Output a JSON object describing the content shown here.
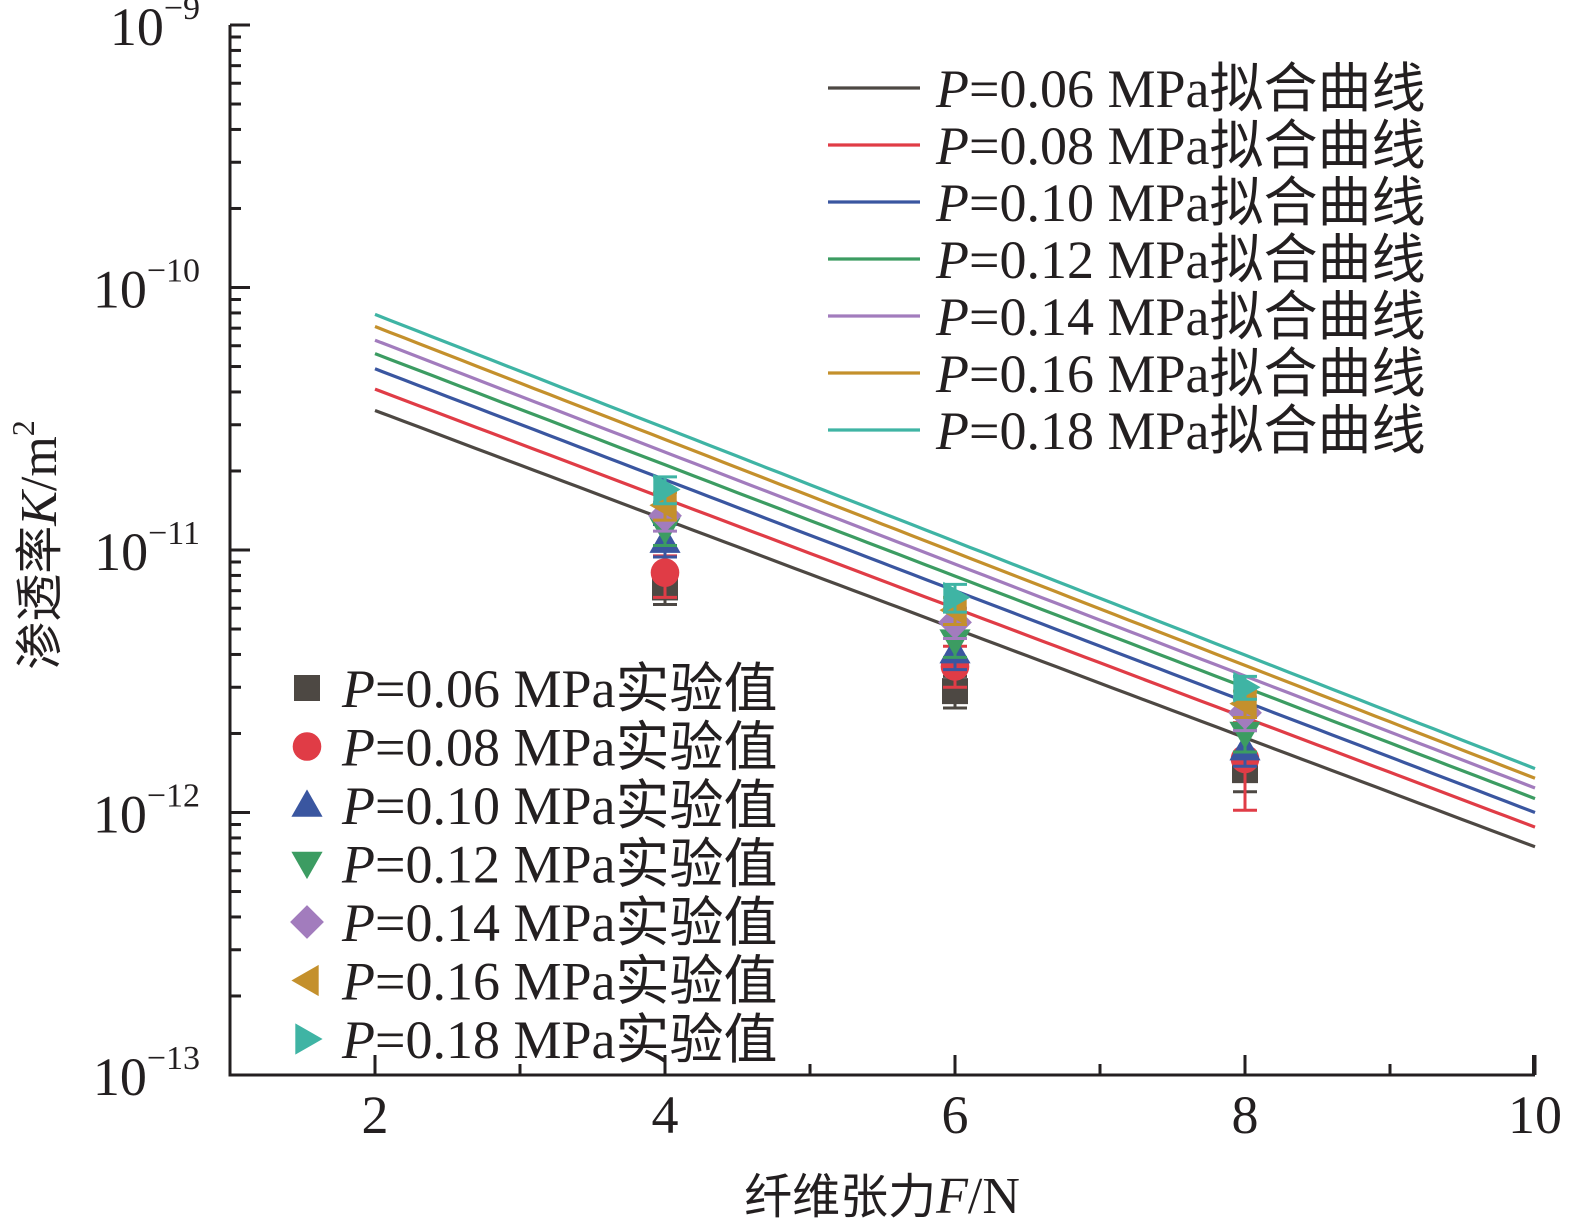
{
  "chart_data": {
    "type": "line",
    "xlabel": {
      "prefix": "纤维张力",
      "var": "F",
      "unit": "/N"
    },
    "ylabel": {
      "prefix": "渗透率",
      "var": "K",
      "unit": "/m",
      "unit_sup": "2"
    },
    "xlim": [
      1,
      10
    ],
    "ylim": [
      1e-13,
      1e-09
    ],
    "yscale": "log",
    "x_ticks": [
      {
        "value": 2,
        "label": "2"
      },
      {
        "value": 4,
        "label": "4"
      },
      {
        "value": 6,
        "label": "6"
      },
      {
        "value": 8,
        "label": "8"
      },
      {
        "value": 10,
        "label": "10"
      }
    ],
    "y_ticks": [
      {
        "value": 1e-09,
        "base": "10",
        "exp": "−9"
      },
      {
        "value": 1e-10,
        "base": "10",
        "exp": "−10"
      },
      {
        "value": 1e-11,
        "base": "10",
        "exp": "−11"
      },
      {
        "value": 1e-12,
        "base": "10",
        "exp": "−12"
      },
      {
        "value": 1e-13,
        "base": "10",
        "exp": "−13"
      }
    ],
    "fit_curves": [
      {
        "name": "P=0.06 MPa拟合曲线",
        "var": "P",
        "text": "=0.06 MPa拟合曲线",
        "color": "#4d4843",
        "x": [
          2,
          10
        ],
        "y": [
          3.4e-11,
          7.4e-13
        ]
      },
      {
        "name": "P=0.08 MPa拟合曲线",
        "var": "P",
        "text": "=0.08 MPa拟合曲线",
        "color": "#e03c46",
        "x": [
          2,
          10
        ],
        "y": [
          4.1e-11,
          8.8e-13
        ]
      },
      {
        "name": "P=0.10 MPa拟合曲线",
        "var": "P",
        "text": "=0.10 MPa拟合曲线",
        "color": "#3a56a0",
        "x": [
          2,
          10
        ],
        "y": [
          4.9e-11,
          1e-12
        ]
      },
      {
        "name": "P=0.12 MPa拟合曲线",
        "var": "P",
        "text": "=0.12 MPa拟合曲线",
        "color": "#3c9c62",
        "x": [
          2,
          10
        ],
        "y": [
          5.6e-11,
          1.13e-12
        ]
      },
      {
        "name": "P=0.14 MPa拟合曲线",
        "var": "P",
        "text": "=0.14 MPa拟合曲线",
        "color": "#a27cbd",
        "x": [
          2,
          10
        ],
        "y": [
          6.3e-11,
          1.24e-12
        ]
      },
      {
        "name": "P=0.16 MPa拟合曲线",
        "var": "P",
        "text": "=0.16 MPa拟合曲线",
        "color": "#c4902c",
        "x": [
          2,
          10
        ],
        "y": [
          7.1e-11,
          1.35e-12
        ]
      },
      {
        "name": "P=0.18 MPa拟合曲线",
        "var": "P",
        "text": "=0.18 MPa拟合曲线",
        "color": "#3fb4a4",
        "x": [
          2,
          10
        ],
        "y": [
          7.9e-11,
          1.47e-12
        ]
      }
    ],
    "experimental": [
      {
        "name": "P=0.06 MPa实验值",
        "var": "P",
        "text": "=0.06 MPa实验值",
        "marker": "square",
        "color": "#4d4843",
        "x": [
          4,
          6,
          8
        ],
        "y": [
          7.2e-12,
          2.9e-12,
          1.45e-12
        ],
        "err_low": [
          6.2e-12,
          2.5e-12,
          1.2e-12
        ],
        "err_high": [
          8.2e-12,
          3.3e-12,
          1.7e-12
        ]
      },
      {
        "name": "P=0.08 MPa实验值",
        "var": "P",
        "text": "=0.08 MPa实验值",
        "marker": "circle",
        "color": "#e03c46",
        "x": [
          4,
          6,
          8
        ],
        "y": [
          8.2e-12,
          3.6e-12,
          1.6e-12
        ],
        "err_low": [
          6.6e-12,
          3e-12,
          1.02e-12
        ],
        "err_high": [
          9.5e-12,
          4.3e-12,
          2.2e-12
        ]
      },
      {
        "name": "P=0.10 MPa实验值",
        "var": "P",
        "text": "=0.10 MPa实验值",
        "marker": "triangle-up",
        "color": "#3a56a0",
        "x": [
          4,
          6,
          8
        ],
        "y": [
          1.08e-11,
          4.1e-12,
          1.75e-12
        ],
        "err_low": [
          9.4e-12,
          3.5e-12,
          1.5e-12
        ],
        "err_high": [
          1.25e-11,
          4.8e-12,
          2.05e-12
        ]
      },
      {
        "name": "P=0.12 MPa实验值",
        "var": "P",
        "text": "=0.12 MPa实验值",
        "marker": "triangle-down",
        "color": "#3c9c62",
        "x": [
          4,
          6,
          8
        ],
        "y": [
          1.2e-11,
          4.5e-12,
          2e-12
        ],
        "err_low": [
          1.04e-11,
          3.9e-12,
          1.7e-12
        ],
        "err_high": [
          1.38e-11,
          5.2e-12,
          2.3e-12
        ]
      },
      {
        "name": "P=0.14 MPa实验值",
        "var": "P",
        "text": "=0.14 MPa实验值",
        "marker": "diamond",
        "color": "#a27cbd",
        "x": [
          4,
          6,
          8
        ],
        "y": [
          1.35e-11,
          5.3e-12,
          2.4e-12
        ],
        "err_low": [
          1.18e-11,
          4.6e-12,
          2.05e-12
        ],
        "err_high": [
          1.52e-11,
          6e-12,
          2.75e-12
        ]
      },
      {
        "name": "P=0.16 MPa实验值",
        "var": "P",
        "text": "=0.16 MPa实验值",
        "marker": "triangle-left",
        "color": "#c4902c",
        "x": [
          4,
          6,
          8
        ],
        "y": [
          1.48e-11,
          5.9e-12,
          2.6e-12
        ],
        "err_low": [
          1.3e-11,
          5.2e-12,
          2.3e-12
        ],
        "err_high": [
          1.66e-11,
          6.6e-12,
          2.9e-12
        ]
      },
      {
        "name": "P=0.18 MPa实验值",
        "var": "P",
        "text": "=0.18 MPa实验值",
        "marker": "triangle-right",
        "color": "#3fb4a4",
        "x": [
          4,
          6,
          8
        ],
        "y": [
          1.7e-11,
          6.6e-12,
          3e-12
        ],
        "err_low": [
          1.5e-11,
          5.8e-12,
          2.7e-12
        ],
        "err_high": [
          1.9e-11,
          7.4e-12,
          3.3e-12
        ]
      }
    ],
    "legends": {
      "fit": "top-right",
      "experimental": "bottom-left"
    },
    "grid": false
  }
}
